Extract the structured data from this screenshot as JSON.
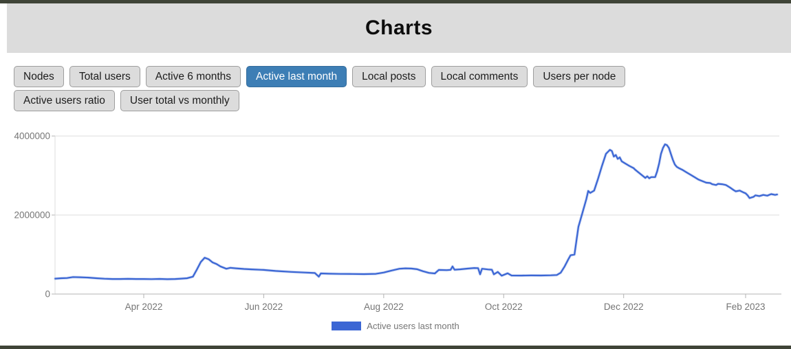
{
  "header": {
    "title": "Charts"
  },
  "tabs": {
    "items": [
      {
        "label": "Nodes",
        "active": false
      },
      {
        "label": "Total users",
        "active": false
      },
      {
        "label": "Active 6 months",
        "active": false
      },
      {
        "label": "Active last month",
        "active": true
      },
      {
        "label": "Local posts",
        "active": false
      },
      {
        "label": "Local comments",
        "active": false
      },
      {
        "label": "Users per node",
        "active": false
      },
      {
        "label": "Active users ratio",
        "active": false
      },
      {
        "label": "User total vs monthly",
        "active": false
      }
    ]
  },
  "colors": {
    "accent_active_tab": "#3d7eb5",
    "line": "#3b66d4",
    "axis_text": "#757575",
    "gridline": "#dcdcdc",
    "axis_line": "#b3b3b3",
    "frame_bar": "#3f4437",
    "header_bg": "#dcdcdc"
  },
  "chart_data": {
    "type": "line",
    "title": "",
    "xlabel": "",
    "ylabel": "",
    "ylim": [
      0,
      4000000
    ],
    "grid": "horizontal",
    "legend_position": "bottom-center",
    "x_range": [
      "2022-02-15",
      "2023-02-17"
    ],
    "y_ticks": [
      {
        "value": 0,
        "label": "0"
      },
      {
        "value": 2000000,
        "label": "2000000"
      },
      {
        "value": 4000000,
        "label": "4000000"
      }
    ],
    "x_ticks": [
      {
        "date": "2022-04-01",
        "label": "Apr 2022"
      },
      {
        "date": "2022-06-01",
        "label": "Jun 2022"
      },
      {
        "date": "2022-08-01",
        "label": "Aug 2022"
      },
      {
        "date": "2022-10-01",
        "label": "Oct 2022"
      },
      {
        "date": "2022-12-01",
        "label": "Dec 2022"
      },
      {
        "date": "2023-02-01",
        "label": "Feb 2023"
      }
    ],
    "series": [
      {
        "name": "Active users last month",
        "color": "#3b66d4",
        "points": [
          [
            "2022-02-15",
            390000
          ],
          [
            "2022-02-18",
            400000
          ],
          [
            "2022-02-21",
            405000
          ],
          [
            "2022-02-24",
            430000
          ],
          [
            "2022-02-28",
            425000
          ],
          [
            "2022-03-04",
            415000
          ],
          [
            "2022-03-08",
            400000
          ],
          [
            "2022-03-12",
            388000
          ],
          [
            "2022-03-16",
            380000
          ],
          [
            "2022-03-20",
            380000
          ],
          [
            "2022-03-24",
            385000
          ],
          [
            "2022-03-28",
            380000
          ],
          [
            "2022-04-01",
            380000
          ],
          [
            "2022-04-05",
            378000
          ],
          [
            "2022-04-09",
            382000
          ],
          [
            "2022-04-13",
            375000
          ],
          [
            "2022-04-17",
            380000
          ],
          [
            "2022-04-20",
            390000
          ],
          [
            "2022-04-23",
            400000
          ],
          [
            "2022-04-26",
            440000
          ],
          [
            "2022-04-28",
            620000
          ],
          [
            "2022-04-30",
            810000
          ],
          [
            "2022-05-02",
            920000
          ],
          [
            "2022-05-04",
            880000
          ],
          [
            "2022-05-06",
            800000
          ],
          [
            "2022-05-08",
            760000
          ],
          [
            "2022-05-10",
            700000
          ],
          [
            "2022-05-13",
            640000
          ],
          [
            "2022-05-15",
            665000
          ],
          [
            "2022-05-18",
            650000
          ],
          [
            "2022-05-22",
            635000
          ],
          [
            "2022-05-26",
            625000
          ],
          [
            "2022-06-01",
            610000
          ],
          [
            "2022-06-07",
            585000
          ],
          [
            "2022-06-15",
            560000
          ],
          [
            "2022-06-22",
            545000
          ],
          [
            "2022-06-27",
            532000
          ],
          [
            "2022-06-29",
            440000
          ],
          [
            "2022-06-30",
            522000
          ],
          [
            "2022-07-04",
            515000
          ],
          [
            "2022-07-10",
            510000
          ],
          [
            "2022-07-16",
            507000
          ],
          [
            "2022-07-22",
            505000
          ],
          [
            "2022-07-28",
            512000
          ],
          [
            "2022-08-01",
            545000
          ],
          [
            "2022-08-05",
            595000
          ],
          [
            "2022-08-09",
            640000
          ],
          [
            "2022-08-12",
            650000
          ],
          [
            "2022-08-15",
            645000
          ],
          [
            "2022-08-18",
            628000
          ],
          [
            "2022-08-21",
            578000
          ],
          [
            "2022-08-24",
            535000
          ],
          [
            "2022-08-27",
            522000
          ],
          [
            "2022-08-29",
            610000
          ],
          [
            "2022-09-02",
            605000
          ],
          [
            "2022-09-04",
            612000
          ],
          [
            "2022-09-05",
            700000
          ],
          [
            "2022-09-06",
            615000
          ],
          [
            "2022-09-09",
            626000
          ],
          [
            "2022-09-13",
            645000
          ],
          [
            "2022-09-16",
            660000
          ],
          [
            "2022-09-18",
            655000
          ],
          [
            "2022-09-19",
            500000
          ],
          [
            "2022-09-20",
            640000
          ],
          [
            "2022-09-23",
            622000
          ],
          [
            "2022-09-25",
            615000
          ],
          [
            "2022-09-26",
            500000
          ],
          [
            "2022-09-28",
            560000
          ],
          [
            "2022-09-30",
            465000
          ],
          [
            "2022-10-03",
            525000
          ],
          [
            "2022-10-05",
            470000
          ],
          [
            "2022-10-10",
            468000
          ],
          [
            "2022-10-15",
            472000
          ],
          [
            "2022-10-20",
            470000
          ],
          [
            "2022-10-25",
            474000
          ],
          [
            "2022-10-28",
            482000
          ],
          [
            "2022-10-30",
            540000
          ],
          [
            "2022-11-01",
            700000
          ],
          [
            "2022-11-03",
            890000
          ],
          [
            "2022-11-04",
            980000
          ],
          [
            "2022-11-06",
            1000000
          ],
          [
            "2022-11-08",
            1700000
          ],
          [
            "2022-11-10",
            2050000
          ],
          [
            "2022-11-12",
            2400000
          ],
          [
            "2022-11-13",
            2610000
          ],
          [
            "2022-11-14",
            2560000
          ],
          [
            "2022-11-16",
            2620000
          ],
          [
            "2022-11-18",
            2920000
          ],
          [
            "2022-11-20",
            3250000
          ],
          [
            "2022-11-22",
            3550000
          ],
          [
            "2022-11-24",
            3650000
          ],
          [
            "2022-11-25",
            3620000
          ],
          [
            "2022-11-26",
            3480000
          ],
          [
            "2022-11-27",
            3520000
          ],
          [
            "2022-11-28",
            3420000
          ],
          [
            "2022-11-29",
            3460000
          ],
          [
            "2022-11-30",
            3360000
          ],
          [
            "2022-12-02",
            3300000
          ],
          [
            "2022-12-04",
            3240000
          ],
          [
            "2022-12-06",
            3190000
          ],
          [
            "2022-12-07",
            3140000
          ],
          [
            "2022-12-09",
            3060000
          ],
          [
            "2022-12-11",
            2980000
          ],
          [
            "2022-12-12",
            2940000
          ],
          [
            "2022-12-13",
            2980000
          ],
          [
            "2022-12-14",
            2930000
          ],
          [
            "2022-12-15",
            2960000
          ],
          [
            "2022-12-17",
            2960000
          ],
          [
            "2022-12-18",
            3100000
          ],
          [
            "2022-12-19",
            3300000
          ],
          [
            "2022-12-20",
            3550000
          ],
          [
            "2022-12-21",
            3700000
          ],
          [
            "2022-12-22",
            3790000
          ],
          [
            "2022-12-23",
            3770000
          ],
          [
            "2022-12-24",
            3700000
          ],
          [
            "2022-12-25",
            3550000
          ],
          [
            "2022-12-26",
            3400000
          ],
          [
            "2022-12-27",
            3280000
          ],
          [
            "2022-12-28",
            3220000
          ],
          [
            "2022-12-29",
            3190000
          ],
          [
            "2022-12-31",
            3140000
          ],
          [
            "2023-01-02",
            3080000
          ],
          [
            "2023-01-04",
            3020000
          ],
          [
            "2023-01-06",
            2960000
          ],
          [
            "2023-01-08",
            2900000
          ],
          [
            "2023-01-10",
            2860000
          ],
          [
            "2023-01-12",
            2820000
          ],
          [
            "2023-01-14",
            2810000
          ],
          [
            "2023-01-15",
            2780000
          ],
          [
            "2023-01-17",
            2760000
          ],
          [
            "2023-01-18",
            2790000
          ],
          [
            "2023-01-20",
            2780000
          ],
          [
            "2023-01-22",
            2760000
          ],
          [
            "2023-01-24",
            2700000
          ],
          [
            "2023-01-26",
            2630000
          ],
          [
            "2023-01-27",
            2600000
          ],
          [
            "2023-01-29",
            2620000
          ],
          [
            "2023-01-31",
            2570000
          ],
          [
            "2023-02-01",
            2550000
          ],
          [
            "2023-02-02",
            2500000
          ],
          [
            "2023-02-03",
            2430000
          ],
          [
            "2023-02-05",
            2460000
          ],
          [
            "2023-02-06",
            2500000
          ],
          [
            "2023-02-08",
            2480000
          ],
          [
            "2023-02-10",
            2510000
          ],
          [
            "2023-02-12",
            2490000
          ],
          [
            "2023-02-14",
            2530000
          ],
          [
            "2023-02-16",
            2510000
          ],
          [
            "2023-02-17",
            2520000
          ]
        ]
      }
    ]
  }
}
